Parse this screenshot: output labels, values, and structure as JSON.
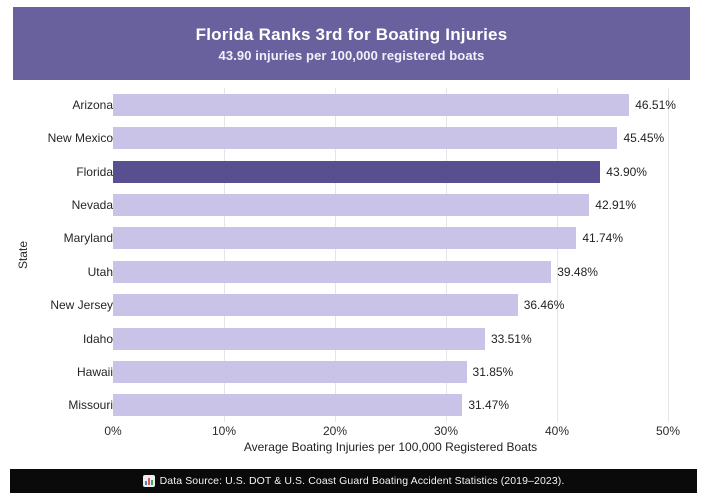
{
  "header": {
    "title": "Florida Ranks 3rd for Boating Injuries",
    "subtitle": "43.90 injuries per 100,000 registered boats"
  },
  "chart_data": {
    "type": "bar",
    "orientation": "horizontal",
    "title": "Florida Ranks 3rd for Boating Injuries",
    "subtitle": "43.90 injuries per 100,000 registered boats",
    "categories": [
      "Arizona",
      "New Mexico",
      "Florida",
      "Nevada",
      "Maryland",
      "Utah",
      "New Jersey",
      "Idaho",
      "Hawaii",
      "Missouri"
    ],
    "values": [
      46.51,
      45.45,
      43.9,
      42.91,
      41.74,
      39.48,
      36.46,
      33.51,
      31.85,
      31.47
    ],
    "value_labels": [
      "46.51%",
      "45.45%",
      "43.90%",
      "42.91%",
      "41.74%",
      "39.48%",
      "36.46%",
      "33.51%",
      "31.85%",
      "31.47%"
    ],
    "highlight_category": "Florida",
    "xlabel": "Average Boating Injuries per 100,000 Registered Boats",
    "ylabel": "State",
    "xlim": [
      0,
      50
    ],
    "x_ticks": [
      "0%",
      "10%",
      "20%",
      "30%",
      "40%",
      "50%"
    ],
    "grid": "vertical-only",
    "legend": "none",
    "colors": {
      "bar": "#c8c3e7",
      "highlight": "#574f90"
    }
  },
  "footer": {
    "icon": "bar-chart-icon",
    "source_text": "Data Source: U.S. DOT & U.S. Coast Guard Boating Accident Statistics (2019–2023)."
  },
  "colors": {
    "banner_background": "#68619d",
    "banner_text": "#ffffff",
    "footer_background": "#0a0a0a",
    "footer_text": "#f5f5f5",
    "gridline": "#e4e4e9",
    "page_background": "#ffffff"
  }
}
